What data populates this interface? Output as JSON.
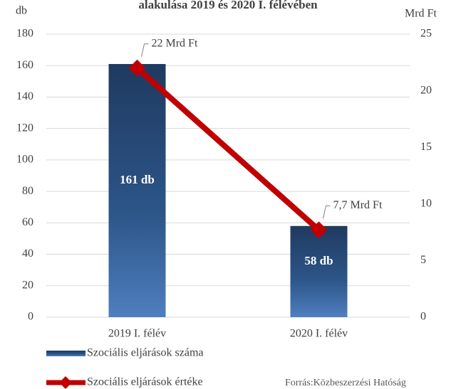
{
  "chart_data": {
    "type": "combo",
    "title": "alakulása 2019 és 2020 I. félévében",
    "y_label": "db",
    "y2_label": "Mrd Ft",
    "categories": [
      "2019 I. félév",
      "2020 I. félév"
    ],
    "series": [
      {
        "name": "Szociális eljárások száma",
        "type": "bar",
        "color": "#2a4f80",
        "values": [
          161,
          58
        ],
        "value_labels": [
          "161 db",
          "58 db"
        ]
      },
      {
        "name": "Szociális eljárások értéke",
        "type": "line",
        "axis": "y2",
        "color": "#c00000",
        "values": [
          22,
          7.7
        ],
        "value_labels": [
          "22 Mrd Ft",
          "7,7 Mrd Ft"
        ]
      }
    ],
    "ylim": [
      0,
      180
    ],
    "yticks": [
      0,
      20,
      40,
      60,
      80,
      100,
      120,
      140,
      160,
      180
    ],
    "y2lim": [
      0,
      25
    ],
    "y2ticks": [
      0,
      5,
      10,
      15,
      20,
      25
    ],
    "grid": true,
    "source": "Forrás:Közbeszerzési Hatóság"
  }
}
